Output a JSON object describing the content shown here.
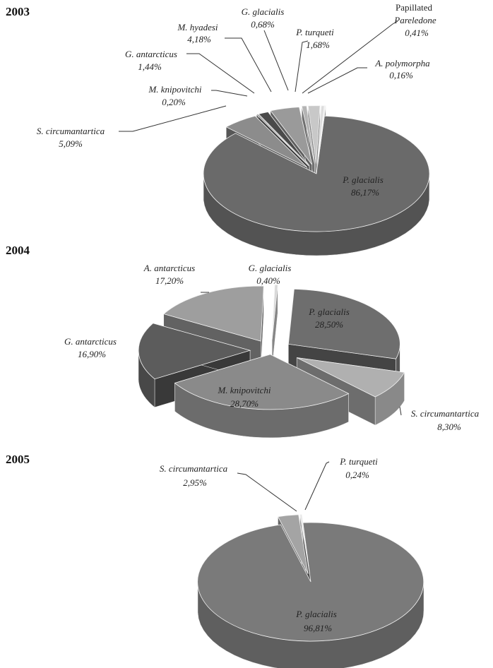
{
  "chart_data": [
    {
      "type": "pie",
      "title": "2003",
      "slices": [
        {
          "label": "P. glacialis",
          "value": "86,17%",
          "num": 86.17,
          "color": "#6a6a6a"
        },
        {
          "label": "S. circumantartica",
          "value": "5,09%",
          "num": 5.09,
          "color": "#8c8c8c"
        },
        {
          "label": "M. knipovitchi",
          "value": "0,20%",
          "num": 0.2,
          "color": "#5a5a5a"
        },
        {
          "label": "G. antarcticus",
          "value": "1,44%",
          "num": 1.44,
          "color": "#4a4a4a"
        },
        {
          "label": "M. hyadesi",
          "value": "4,18%",
          "num": 4.18,
          "color": "#9a9a9a"
        },
        {
          "label": "G. glacialis",
          "value": "0,68%",
          "num": 0.68,
          "color": "#b4b4b4"
        },
        {
          "label": "P. turqueti",
          "value": "1,68%",
          "num": 1.68,
          "color": "#c8c8c8"
        },
        {
          "label": "Papillated",
          "label2": "Pareledone",
          "value": "0,41%",
          "num": 0.41,
          "color": "#dcdcdc"
        },
        {
          "label": "A. polymorpha",
          "value": "0,16%",
          "num": 0.16,
          "color": "#f0f0f0"
        }
      ]
    },
    {
      "type": "pie",
      "title": "2004",
      "slices": [
        {
          "label": "P. glacialis",
          "value": "28,50%",
          "num": 28.5,
          "color": "#6e6e6e"
        },
        {
          "label": "S. circumantartica",
          "value": "8,30%",
          "num": 8.3,
          "color": "#b0b0b0"
        },
        {
          "label": "M. knipovitchi",
          "value": "28,70%",
          "num": 28.7,
          "color": "#8a8a8a"
        },
        {
          "label": "G. antarcticus",
          "value": "16,90%",
          "num": 16.9,
          "color": "#5c5c5c"
        },
        {
          "label": "A. antarcticus",
          "value": "17,20%",
          "num": 17.2,
          "color": "#9e9e9e"
        },
        {
          "label": "G. glacialis",
          "value": "0,40%",
          "num": 0.4,
          "color": "#d8d8d8"
        }
      ]
    },
    {
      "type": "pie",
      "title": "2005",
      "slices": [
        {
          "label": "P. glacialis",
          "value": "96,81%",
          "num": 96.81,
          "color": "#7a7a7a"
        },
        {
          "label": "S. circumantartica",
          "value": "2,95%",
          "num": 2.95,
          "color": "#a4a4a4"
        },
        {
          "label": "P. turqueti",
          "value": "0,24%",
          "num": 0.24,
          "color": "#e6e6e6"
        }
      ]
    }
  ]
}
